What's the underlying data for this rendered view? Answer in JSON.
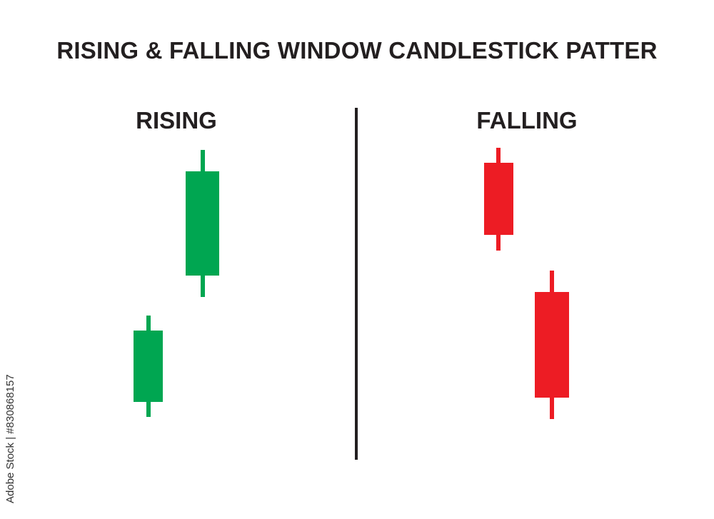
{
  "title": "RISING & FALLING WINDOW CANDLESTICK PATTER",
  "panels": {
    "rising": {
      "label": "RISING",
      "color": "#00A651"
    },
    "falling": {
      "label": "FALLING",
      "color": "#ED1C24"
    }
  },
  "watermark": "Adobe Stock | #830868157"
}
